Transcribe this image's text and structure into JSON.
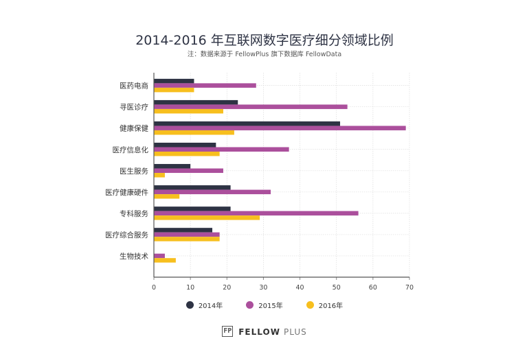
{
  "chart_data": {
    "type": "bar",
    "orientation": "horizontal",
    "title": "2014-2016 年互联网数字医疗细分领域比例",
    "subtitle": "注：数据来源于 FellowPlus 旗下数据库 FellowData",
    "categories": [
      "医药电商",
      "寻医诊疗",
      "健康保健",
      "医疗信息化",
      "医生服务",
      "医疗健康硬件",
      "专科服务",
      "医疗综合服务",
      "生物技术"
    ],
    "series": [
      {
        "name": "2014年",
        "color": "#2e3344",
        "values": [
          11,
          23,
          51,
          17,
          10,
          21,
          21,
          16,
          0
        ]
      },
      {
        "name": "2015年",
        "color": "#ab4f9c",
        "values": [
          28,
          53,
          69,
          37,
          19,
          32,
          56,
          18,
          3
        ]
      },
      {
        "name": "2016年",
        "color": "#f7bf1e",
        "values": [
          11,
          19,
          22,
          18,
          3,
          7,
          29,
          18,
          6
        ]
      }
    ],
    "xlim": [
      0,
      70
    ],
    "xticks": [
      0,
      10,
      20,
      30,
      40,
      50,
      60,
      70
    ],
    "grid": true,
    "legend_position": "bottom"
  },
  "brand": {
    "mark": "FP",
    "name": "FELLOW",
    "suffix": "PLUS"
  }
}
